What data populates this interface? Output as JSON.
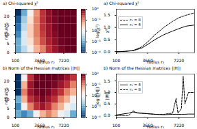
{
  "chart_data": [
    {
      "type": "heatmap",
      "title": "a) Chi-squared χ²",
      "x_label": "radius r₂",
      "y_label": "radius r₁",
      "xlim": [
        100,
        9100
      ],
      "xticks": [
        100,
        3660,
        7220
      ],
      "ylim": [
        0,
        24
      ],
      "yticks": [
        0,
        5,
        10,
        15,
        20
      ],
      "log": true,
      "cells": {
        "x": [
          550,
          1450,
          2350,
          3250,
          4150,
          5050,
          5950,
          6850,
          7750,
          8650
        ],
        "y": [
          2,
          6,
          10,
          14,
          18,
          22
        ],
        "values": [
          [
            0.001,
            0.003,
            0.01,
            0.05,
            0.1,
            0.3,
            0.5,
            0.8,
            1,
            1
          ],
          [
            0.001,
            0.005,
            0.02,
            0.08,
            0.2,
            0.4,
            0.6,
            0.9,
            1,
            1
          ],
          [
            0.0005,
            0.005,
            0.03,
            0.1,
            0.25,
            0.5,
            0.7,
            1,
            1,
            1
          ],
          [
            0.0003,
            0.003,
            0.03,
            0.1,
            0.3,
            0.5,
            0.8,
            1,
            1,
            1
          ],
          [
            0.0002,
            0.002,
            0.02,
            0.1,
            0.3,
            0.6,
            0.8,
            1,
            1,
            1
          ],
          [
            0.0001,
            0.001,
            0.01,
            0.08,
            0.3,
            0.6,
            0.9,
            1,
            1,
            1
          ]
        ]
      },
      "colorbar": {
        "label": "log(χ²)",
        "range": [
          0.0001,
          1
        ],
        "ticks": [
          {
            "value": 1,
            "label": "10⁰"
          },
          {
            "value": 0.1,
            "label": "10⁻¹"
          },
          {
            "value": 0.01,
            "label": "10⁻²"
          },
          {
            "value": 0.001,
            "label": "10⁻³"
          },
          {
            "value": 0.0001,
            "label": "10⁻⁴"
          }
        ]
      }
    },
    {
      "type": "heatmap",
      "title": "b) Norm of the Hessian matrices ||H||",
      "x_label": "radius r₂",
      "y_label": "radius r₁",
      "xlim": [
        100,
        9100
      ],
      "xticks": [
        100,
        3660,
        7220
      ],
      "ylim": [
        0,
        24
      ],
      "yticks": [
        0,
        5,
        10,
        15,
        20
      ],
      "log": true,
      "cells": {
        "x": [
          550,
          1450,
          2350,
          3250,
          4150,
          5050,
          5950,
          6850,
          7750,
          8650
        ],
        "y": [
          2,
          6,
          10,
          14,
          18,
          22
        ],
        "values": [
          [
            0.001,
            0.0005,
            0.001,
            0.01,
            0.05,
            0.1,
            0.05,
            0.01,
            0.005,
            0.001
          ],
          [
            0.0005,
            0.01,
            0.1,
            0.3,
            0.5,
            0.3,
            0.1,
            0.05,
            0.01,
            0.005
          ],
          [
            0.001,
            0.05,
            0.3,
            0.5,
            0.8,
            0.5,
            0.3,
            0.1,
            0.05,
            0.01
          ],
          [
            0.0001,
            0.1,
            0.5,
            0.8,
            1,
            0.8,
            0.5,
            0.3,
            0.1,
            0.05
          ],
          [
            0.0001,
            0.05,
            0.5,
            1,
            1,
            1,
            0.8,
            0.5,
            0.3,
            0.1
          ],
          [
            0.0001,
            0.01,
            0.3,
            0.8,
            1,
            1,
            1,
            0.8,
            0.5,
            0.3
          ]
        ]
      },
      "colorbar": {
        "label": "log(||H||)",
        "range": [
          0.0001,
          1
        ],
        "ticks": [
          {
            "value": 1,
            "label": "10⁰"
          },
          {
            "value": 0.1,
            "label": "10⁻¹"
          },
          {
            "value": 0.01,
            "label": "10⁻²"
          },
          {
            "value": 0.001,
            "label": "10⁻³"
          },
          {
            "value": 0.0001,
            "label": "10⁻⁴"
          }
        ]
      }
    },
    {
      "type": "line",
      "title": "a) Chi-squared χ²",
      "x_label": "radius r₂",
      "y_label": "χ²",
      "xlim": [
        100,
        9000
      ],
      "xticks": [
        100,
        3660,
        7220
      ],
      "ylim": [
        -0.05,
        1.75
      ],
      "yticks": [
        {
          "value": 0,
          "label": "0.0"
        },
        {
          "value": 0.5,
          "label": "0.5"
        },
        {
          "value": 1,
          "label": "1.0"
        },
        {
          "value": 1.5,
          "label": "1.5"
        }
      ],
      "legend": "top-left",
      "x": [
        100,
        1000,
        2000,
        3000,
        3660,
        4500,
        5500,
        6500,
        7220,
        8000,
        9000
      ],
      "series": [
        {
          "name": "r₁ = 8",
          "color": "#000000",
          "line_style": "dashed",
          "values": [
            0,
            0.01,
            0.05,
            0.2,
            0.4,
            0.7,
            1.0,
            1.25,
            1.4,
            1.5,
            1.6
          ]
        },
        {
          "name": "r₁ = 4",
          "color": "#000000",
          "line_style": "solid",
          "values": [
            0,
            0.01,
            0.04,
            0.15,
            0.3,
            0.5,
            0.7,
            0.85,
            0.95,
            1.05,
            1.1
          ]
        }
      ]
    },
    {
      "type": "line",
      "title": "b) Norm of the Hessian matrices ||H||",
      "x_label": "radius r₂",
      "y_label": "||H||",
      "xlim": [
        100,
        9000
      ],
      "xticks": [
        100,
        3660,
        7220
      ],
      "ylim": [
        -0.1,
        1.8
      ],
      "yticks": [
        {
          "value": 0,
          "label": "0.0"
        },
        {
          "value": 0.5,
          "label": "0.5"
        },
        {
          "value": 1,
          "label": "1.0"
        },
        {
          "value": 1.5,
          "label": "1.5"
        }
      ],
      "legend": "top-left",
      "x": [
        100,
        1500,
        2000,
        2500,
        3500,
        4500,
        5500,
        6500,
        6900,
        7100,
        7500,
        7700,
        7900,
        8300,
        9000
      ],
      "series": [
        {
          "name": "r₁ = 4",
          "color": "#000000",
          "line_style": "solid",
          "values": [
            0.02,
            0.1,
            0.15,
            0.12,
            0.08,
            0.05,
            0.03,
            0.05,
            0.05,
            0.05,
            0.05,
            0.05,
            0.05,
            0.06,
            0.06
          ]
        },
        {
          "name": "r₁ = 8",
          "color": "#000000",
          "line_style": "dashed",
          "values": [
            0,
            0,
            0.2,
            0.1,
            0.08,
            0.05,
            0.05,
            0.1,
            0.75,
            0.1,
            0.3,
            1.7,
            0.5,
            1.0,
            1.0
          ]
        }
      ]
    }
  ]
}
